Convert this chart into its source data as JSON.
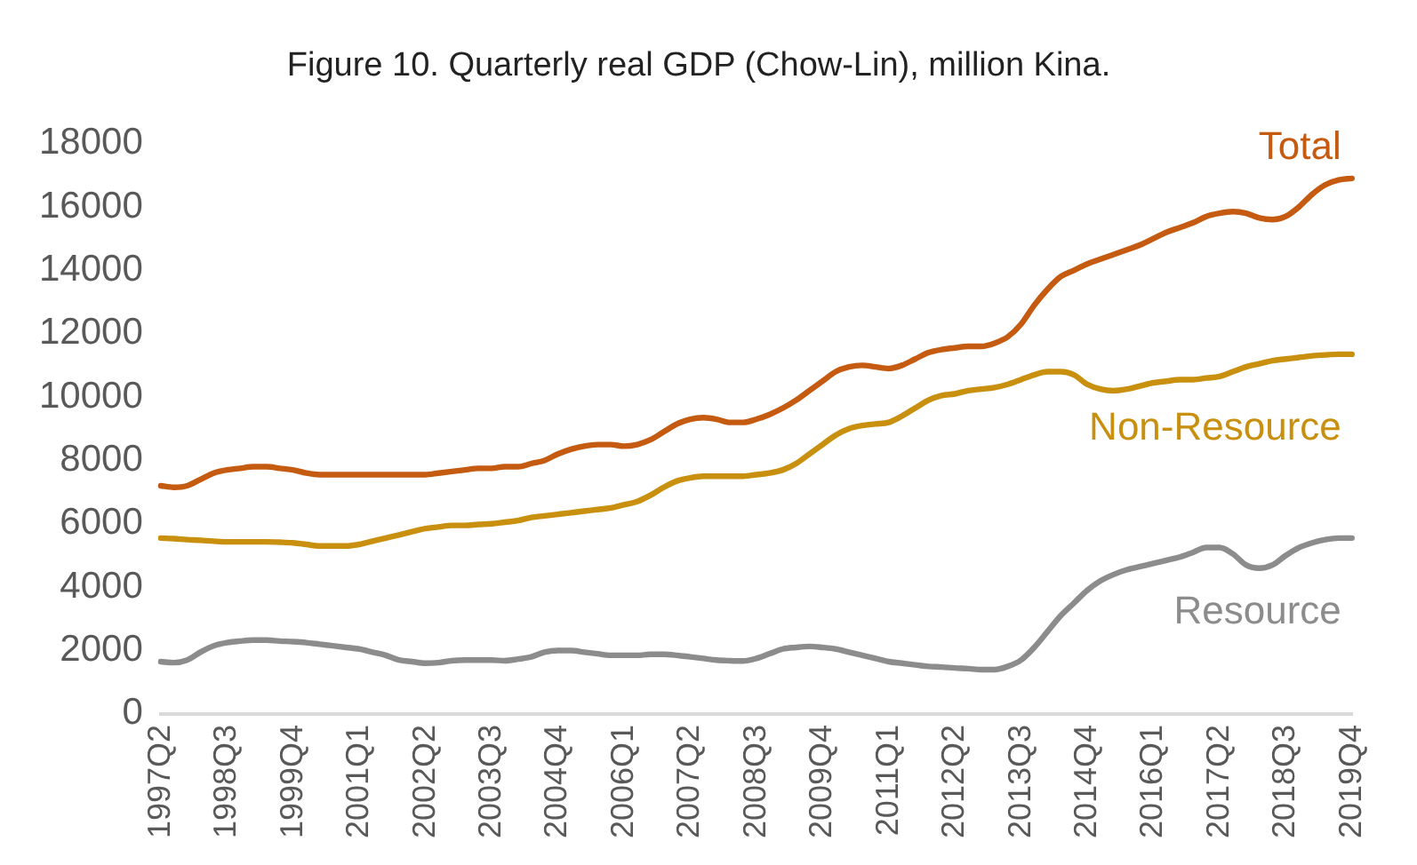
{
  "chart_data": {
    "type": "line",
    "title": "Figure 10. Quarterly real GDP (Chow-Lin), million Kina.",
    "categories": [
      "1997Q2",
      null,
      null,
      null,
      null,
      "1998Q3",
      null,
      null,
      null,
      null,
      "1999Q4",
      null,
      null,
      null,
      null,
      "2001Q1",
      null,
      null,
      null,
      null,
      "2002Q2",
      null,
      null,
      null,
      null,
      "2003Q3",
      null,
      null,
      null,
      null,
      "2004Q4",
      null,
      null,
      null,
      null,
      "2006Q1",
      null,
      null,
      null,
      null,
      "2007Q2",
      null,
      null,
      null,
      null,
      "2008Q3",
      null,
      null,
      null,
      null,
      "2009Q4",
      null,
      null,
      null,
      null,
      "2011Q1",
      null,
      null,
      null,
      null,
      "2012Q2",
      null,
      null,
      null,
      null,
      "2013Q3",
      null,
      null,
      null,
      null,
      "2014Q4",
      null,
      null,
      null,
      null,
      "2016Q1",
      null,
      null,
      null,
      null,
      "2017Q2",
      null,
      null,
      null,
      null,
      "2018Q3",
      null,
      null,
      null,
      null,
      "2019Q4"
    ],
    "series": [
      {
        "name": "Total",
        "color": "#c55a11",
        "values": [
          7200,
          7150,
          7200,
          7400,
          7600,
          7700,
          7750,
          7800,
          7800,
          7750,
          7700,
          7600,
          7550,
          7550,
          7550,
          7550,
          7550,
          7550,
          7550,
          7550,
          7550,
          7600,
          7650,
          7700,
          7750,
          7750,
          7800,
          7800,
          7900,
          8000,
          8200,
          8350,
          8450,
          8500,
          8500,
          8450,
          8500,
          8650,
          8900,
          9150,
          9300,
          9350,
          9300,
          9200,
          9200,
          9300,
          9450,
          9650,
          9900,
          10200,
          10500,
          10800,
          10950,
          11000,
          10950,
          10900,
          11000,
          11200,
          11400,
          11500,
          11550,
          11600,
          11600,
          11700,
          11900,
          12300,
          12900,
          13400,
          13800,
          14000,
          14200,
          14350,
          14500,
          14650,
          14800,
          15000,
          15200,
          15350,
          15500,
          15700,
          15800,
          15850,
          15800,
          15650,
          15600,
          15700,
          16000,
          16400,
          16700,
          16850,
          16900
        ]
      },
      {
        "name": "Non-Resource",
        "color": "#c9900f",
        "values": [
          5550,
          5530,
          5500,
          5480,
          5450,
          5430,
          5430,
          5430,
          5430,
          5420,
          5400,
          5350,
          5300,
          5300,
          5300,
          5350,
          5450,
          5550,
          5650,
          5750,
          5850,
          5900,
          5950,
          5950,
          5980,
          6000,
          6050,
          6100,
          6200,
          6250,
          6300,
          6350,
          6400,
          6450,
          6500,
          6600,
          6700,
          6900,
          7150,
          7350,
          7450,
          7500,
          7500,
          7500,
          7500,
          7550,
          7600,
          7700,
          7900,
          8200,
          8500,
          8800,
          9000,
          9100,
          9150,
          9200,
          9400,
          9650,
          9900,
          10050,
          10100,
          10200,
          10250,
          10300,
          10400,
          10550,
          10700,
          10800,
          10800,
          10700,
          10400,
          10250,
          10200,
          10250,
          10350,
          10450,
          10500,
          10550,
          10550,
          10600,
          10650,
          10800,
          10950,
          11050,
          11150,
          11200,
          11250,
          11300,
          11330,
          11350,
          11350
        ]
      },
      {
        "name": "Resource",
        "color": "#8c8c8c",
        "values": [
          1650,
          1620,
          1700,
          1950,
          2150,
          2250,
          2300,
          2330,
          2330,
          2300,
          2280,
          2250,
          2200,
          2150,
          2100,
          2050,
          1950,
          1850,
          1700,
          1650,
          1600,
          1620,
          1680,
          1700,
          1700,
          1700,
          1680,
          1730,
          1800,
          1950,
          2000,
          2000,
          1950,
          1900,
          1850,
          1850,
          1850,
          1880,
          1880,
          1850,
          1800,
          1750,
          1700,
          1680,
          1670,
          1750,
          1900,
          2050,
          2100,
          2130,
          2100,
          2050,
          1950,
          1850,
          1750,
          1650,
          1600,
          1550,
          1500,
          1480,
          1450,
          1430,
          1400,
          1400,
          1500,
          1700,
          2100,
          2600,
          3100,
          3500,
          3900,
          4200,
          4400,
          4550,
          4650,
          4750,
          4850,
          4950,
          5100,
          5250,
          5250,
          5050,
          4700,
          4600,
          4700,
          5000,
          5250,
          5400,
          5500,
          5550,
          5550
        ]
      }
    ],
    "ylim": [
      0,
      18000
    ],
    "yticks": [
      0,
      2000,
      4000,
      6000,
      8000,
      10000,
      12000,
      14000,
      16000,
      18000
    ],
    "grid": false,
    "legend": false,
    "marker": "none",
    "line_style": "solid"
  }
}
